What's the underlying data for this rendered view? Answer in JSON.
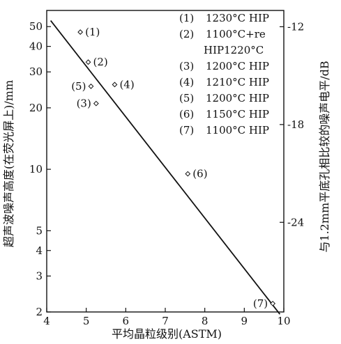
{
  "chart_data": {
    "type": "scatter",
    "title": "",
    "xlabel": "平均晶粒级别(ASTM)",
    "ylabel": "超声波噪声高度(在荧光屏上)/mm",
    "y2label": "与1.2mm平底孔相比较的噪声电平/dB",
    "xlim": [
      4,
      10
    ],
    "ylim": [
      2,
      60
    ],
    "yscale": "log",
    "y2lim": [
      -29.5,
      -11
    ],
    "grid": false,
    "legend_position": "top-right",
    "x_ticks": [
      "4",
      "5",
      "6",
      "7",
      "8",
      "9",
      "10"
    ],
    "y_ticks": [
      "2",
      "3",
      "4",
      "5",
      "10",
      "20",
      "30",
      "40",
      "50"
    ],
    "y2_ticks": [
      "-12",
      "-18",
      "-24"
    ],
    "points": [
      {
        "label": "(1)",
        "x": 4.85,
        "y": 47
      },
      {
        "label": "(2)",
        "x": 5.05,
        "y": 33.5
      },
      {
        "label": "(4)",
        "x": 5.72,
        "y": 26
      },
      {
        "label": "(5)",
        "x": 5.12,
        "y": 25.5
      },
      {
        "label": "(3)",
        "x": 5.25,
        "y": 21
      },
      {
        "label": "(6)",
        "x": 7.57,
        "y": 9.5
      },
      {
        "label": "(7)",
        "x": 9.72,
        "y": 2.2
      }
    ],
    "fit_line": [
      [
        4.1,
        53.5
      ],
      [
        9.9,
        1.95
      ]
    ],
    "legend": [
      {
        "code": "(1)",
        "text": "1230°C HIP"
      },
      {
        "code": "(2)",
        "text": "1100°C+re"
      },
      {
        "code": "",
        "text": "HIP1220°C"
      },
      {
        "code": "(3)",
        "text": "1200°C HIP"
      },
      {
        "code": "(4)",
        "text": "1210°C HIP"
      },
      {
        "code": "(5)",
        "text": "1200°C HIP"
      },
      {
        "code": "(6)",
        "text": "1150°C HIP"
      },
      {
        "code": "(7)",
        "text": "1100°C HIP"
      }
    ]
  }
}
